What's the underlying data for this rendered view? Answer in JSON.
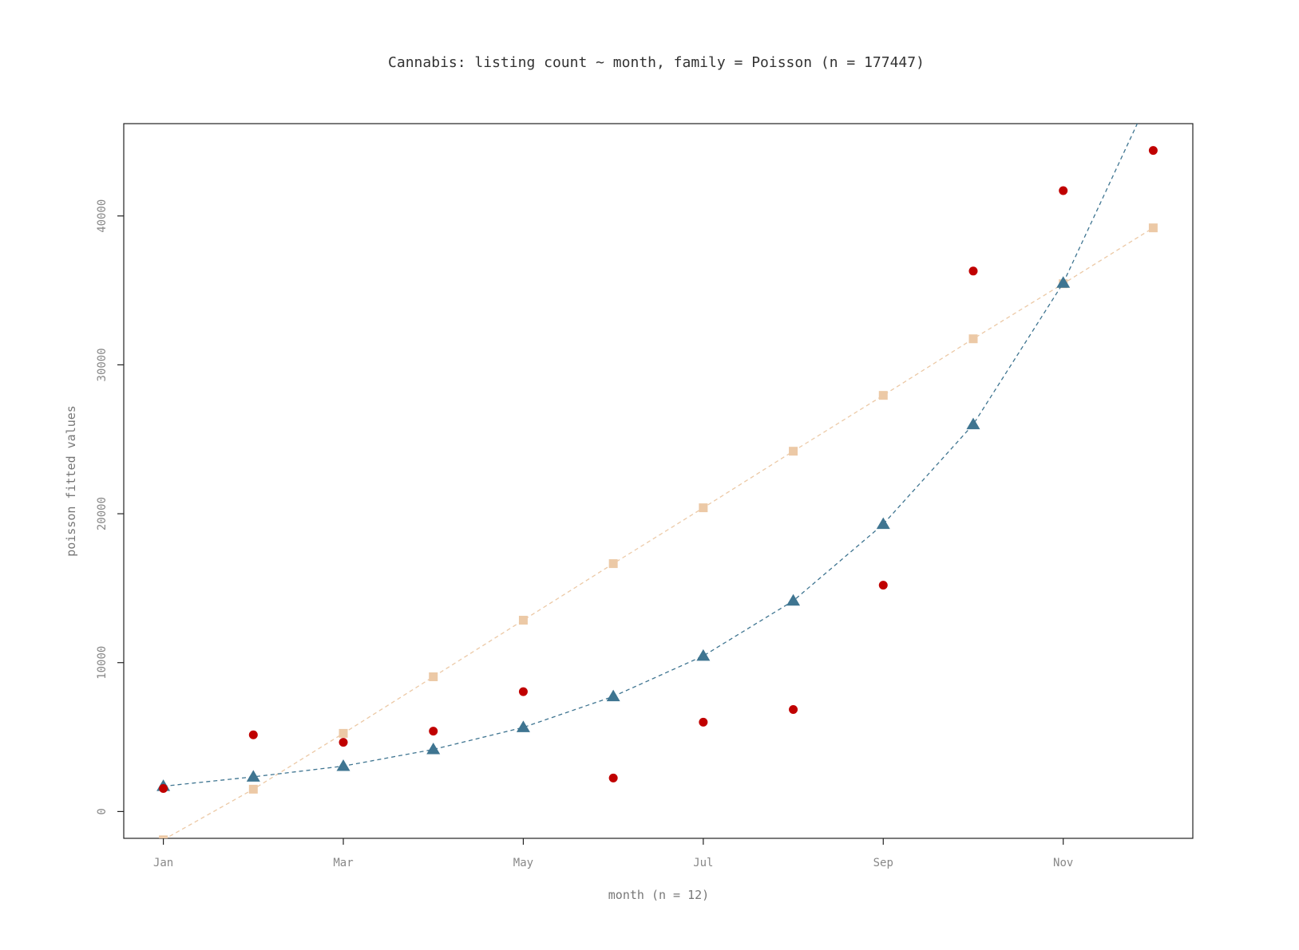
{
  "chart_data": {
    "type": "scatter",
    "title": "Cannabis: listing count ~ month, family = Poisson (n = 177447)",
    "xlabel": "month (n = 12)",
    "ylabel": "poisson fitted values",
    "x": [
      1,
      2,
      3,
      4,
      5,
      6,
      7,
      8,
      9,
      10,
      11,
      12
    ],
    "x_tick_values": [
      1,
      3,
      5,
      7,
      9,
      11
    ],
    "x_tick_labels": [
      "Jan",
      "Mar",
      "May",
      "Jul",
      "Sep",
      "Nov"
    ],
    "y_tick_values": [
      0,
      10000,
      20000,
      30000,
      40000
    ],
    "y_tick_labels": [
      "0",
      "10000",
      "20000",
      "30000",
      "40000"
    ],
    "xlim": [
      0.56,
      12.44
    ],
    "ylim": [
      -1800,
      46200
    ],
    "grid": false,
    "legend": "none",
    "series": [
      {
        "kind": "points",
        "marker": "circle",
        "color": "#c00000",
        "values": [
          1550,
          5150,
          4650,
          5400,
          8050,
          2250,
          6000,
          6850,
          15200,
          36300,
          41700,
          44400
        ]
      },
      {
        "kind": "line",
        "marker": "triangle",
        "line_style": "dashed",
        "color": "#3f7591",
        "values": [
          1700,
          2330,
          3050,
          4170,
          5650,
          7730,
          10450,
          14150,
          19300,
          26000,
          35500,
          48500
        ]
      },
      {
        "kind": "line",
        "marker": "square",
        "line_style": "dashed",
        "color": "#ecc9a6",
        "values": [
          -1900,
          1500,
          5250,
          9050,
          12850,
          16650,
          20400,
          24200,
          27950,
          31750,
          35450,
          39200
        ]
      }
    ]
  }
}
